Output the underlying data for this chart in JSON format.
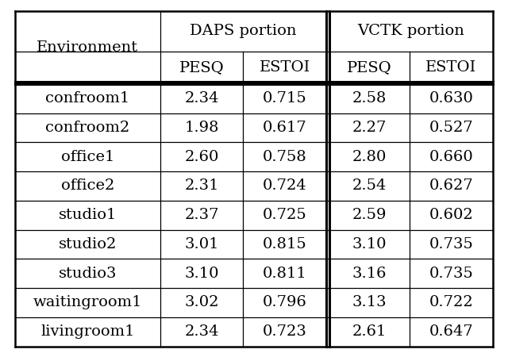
{
  "environments": [
    "confroom1",
    "confroom2",
    "office1",
    "office2",
    "studio1",
    "studio2",
    "studio3",
    "waitingroom1",
    "livingroom1"
  ],
  "daps_pesq": [
    "2.34",
    "1.98",
    "2.60",
    "2.31",
    "2.37",
    "3.01",
    "3.10",
    "3.02",
    "2.34"
  ],
  "daps_estoi": [
    "0.715",
    "0.617",
    "0.758",
    "0.724",
    "0.725",
    "0.815",
    "0.811",
    "0.796",
    "0.723"
  ],
  "vctk_pesq": [
    "2.58",
    "2.27",
    "2.80",
    "2.54",
    "2.59",
    "3.10",
    "3.16",
    "3.13",
    "2.61"
  ],
  "vctk_estoi": [
    "0.630",
    "0.527",
    "0.660",
    "0.627",
    "0.602",
    "0.735",
    "0.735",
    "0.722",
    "0.647"
  ],
  "bg_color": "#ffffff",
  "text_color": "#000000",
  "border_color": "#000000",
  "font_size": 14,
  "header_font_size": 14,
  "outer_lw": 1.8,
  "double_lw": 2.2,
  "thin_lw": 0.9
}
